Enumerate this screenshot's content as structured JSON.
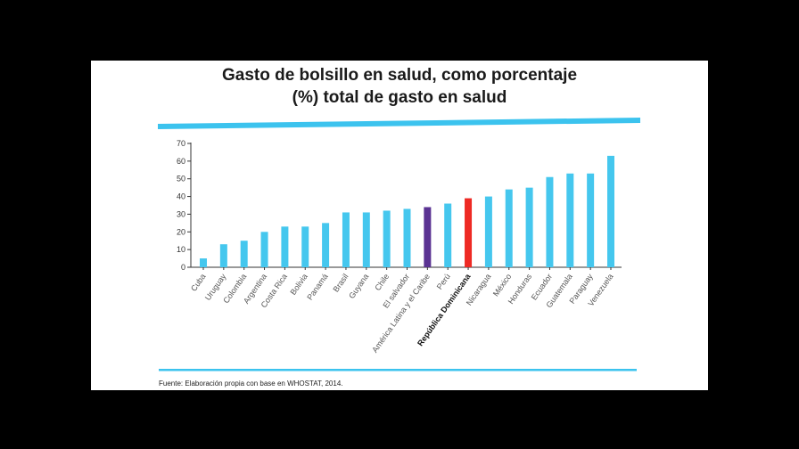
{
  "chart_data": {
    "type": "bar",
    "title": "Gasto de bolsillo en salud, como porcentaje (%) total de gasto en salud",
    "title_lines": [
      "Gasto de bolsillo en salud, como porcentaje",
      "(%) total de gasto en salud"
    ],
    "source": "Fuente: Elaboración propia con base en WHOSTAT, 2014.",
    "categories": [
      "Cuba",
      "Uruguay",
      "Colombia",
      "Argentina",
      "Costa Rica",
      "Bolivia",
      "Panamá",
      "Brasil",
      "Guyana",
      "Chile",
      "El salvador",
      "América Latina y el Caribe",
      "Perú",
      "República Dominicana",
      "Nicaragua",
      "México",
      "Honduras",
      "Ecuador",
      "Guatemala",
      "Paraguay",
      "Venezuela"
    ],
    "values": [
      5,
      13,
      15,
      20,
      23,
      23,
      25,
      31,
      31,
      32,
      33,
      34,
      36,
      39,
      40,
      44,
      45,
      51,
      53,
      53,
      63
    ],
    "highlight": {
      "América Latina y el Caribe": "#5b3393",
      "República Dominicana": "#ee2a24"
    },
    "bold_categories": [
      "República Dominicana"
    ],
    "bar_color": "#45c7ee",
    "accent_color": "#3cc3ee",
    "yticks": [
      0,
      10,
      20,
      30,
      40,
      50,
      60,
      70
    ],
    "ylim": [
      0,
      70
    ],
    "xlabel": "",
    "ylabel": "",
    "grid": false,
    "legend": "none"
  }
}
